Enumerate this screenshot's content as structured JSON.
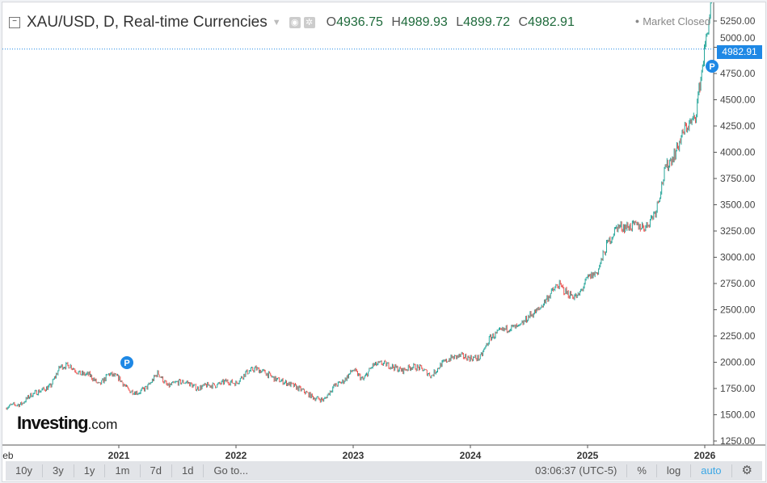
{
  "header": {
    "title": "XAU/USD, D, Real-time Currencies",
    "open_label": "O",
    "open": "4936.75",
    "high_label": "H",
    "high": "4989.93",
    "low_label": "L",
    "low": "4899.72",
    "close_label": "C",
    "close": "4982.91",
    "status": "Market Closed"
  },
  "last_price": "4982.91",
  "logo": {
    "main": "Investing",
    "suffix": ".com"
  },
  "toolbar": {
    "ranges": [
      "10y",
      "3y",
      "1y",
      "1m",
      "7d",
      "1d"
    ],
    "goto": "Go to...",
    "time": "03:06:37 (UTC-5)",
    "percent": "%",
    "log": "log",
    "auto": "auto"
  },
  "colors": {
    "up": "#26a69a",
    "down": "#ef5350",
    "accent": "#1e88e5"
  },
  "chart_data": {
    "type": "candlestick",
    "title": "XAU/USD, D",
    "x_tick_labels": [
      "Feb",
      "2021",
      "2022",
      "2023",
      "2024",
      "2025",
      "2026"
    ],
    "y_ticks": [
      1250,
      1500,
      1750,
      2000,
      2250,
      2500,
      2750,
      3000,
      3250,
      3500,
      3750,
      4000,
      4250,
      4500,
      4750,
      5000,
      5250
    ],
    "ylim": [
      1250,
      5250
    ],
    "start": "2020-01",
    "monthly_close": [
      1560,
      1590,
      1600,
      1690,
      1730,
      1770,
      1960,
      1970,
      1890,
      1880,
      1780,
      1890,
      1850,
      1730,
      1710,
      1770,
      1900,
      1770,
      1810,
      1810,
      1750,
      1780,
      1780,
      1820,
      1800,
      1900,
      1940,
      1900,
      1840,
      1810,
      1770,
      1720,
      1660,
      1640,
      1770,
      1820,
      1930,
      1830,
      1970,
      1990,
      1960,
      1920,
      1960,
      1940,
      1870,
      1980,
      2040,
      2060,
      2040,
      2040,
      2230,
      2290,
      2330,
      2330,
      2440,
      2500,
      2630,
      2740,
      2650,
      2620,
      2800,
      2860,
      3120,
      3290,
      3290,
      3300,
      3290,
      3450,
      3850,
      4000,
      4230,
      4320,
      4980
    ],
    "markers": [
      {
        "label": "P",
        "date": "2021-01"
      },
      {
        "label": "P",
        "date": "2026-01"
      }
    ]
  }
}
